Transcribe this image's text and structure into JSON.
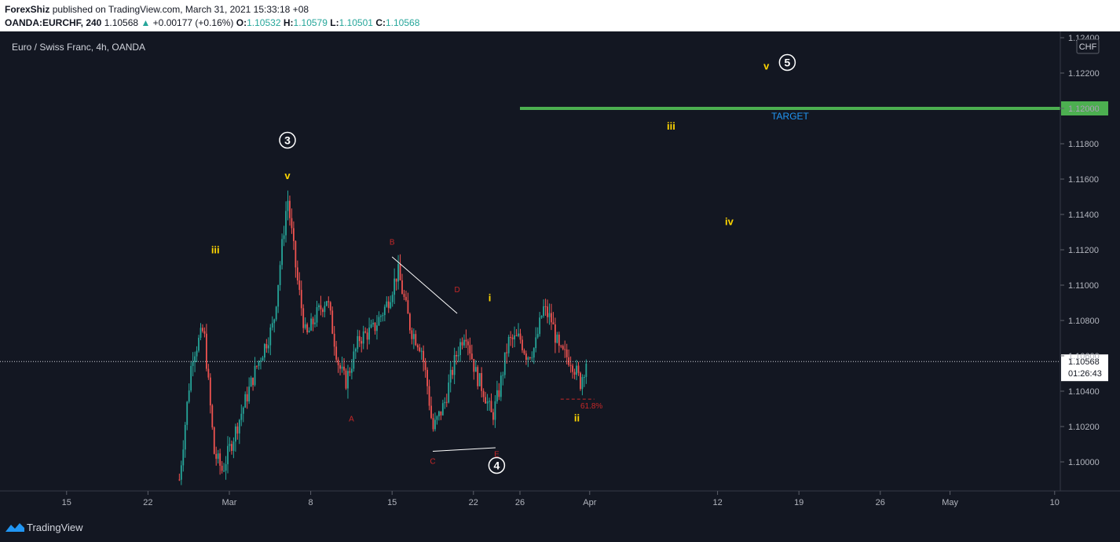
{
  "header": {
    "author": "ForexShiz",
    "published_text": "published on TradingView.com, March 31, 2021 15:33:18 +08",
    "symbol": "OANDA:EURCHF, 240",
    "last": "1.10568",
    "change": "+0.00177 (+0.16%)",
    "o_label": "O:",
    "o": "1.10532",
    "h_label": "H:",
    "h": "1.10579",
    "l_label": "L:",
    "l": "1.10501",
    "c_label": "C:",
    "c": "1.10568"
  },
  "footer": {
    "brand": "TradingView"
  },
  "colors": {
    "bg": "#131722",
    "up": "#26a69a",
    "down": "#ef5350",
    "target": "#4caf50",
    "yellow": "#ffd600",
    "red_label": "#c62828",
    "blue": "#2196f3"
  },
  "chart_data": {
    "type": "candlestick",
    "title": "Euro / Swiss Franc, 4h, OANDA",
    "currency": "CHF",
    "ylim": [
      1.098,
      1.1245
    ],
    "yticks": [
      "1.12400",
      "1.12200",
      "1.12000",
      "1.11800",
      "1.11600",
      "1.11400",
      "1.11200",
      "1.11000",
      "1.10800",
      "1.10600",
      "1.10400",
      "1.10200",
      "1.10000"
    ],
    "xticks": [
      {
        "label": "15",
        "day": -14
      },
      {
        "label": "22",
        "day": -7
      },
      {
        "label": "Mar",
        "day": 0
      },
      {
        "label": "8",
        "day": 7
      },
      {
        "label": "15",
        "day": 14
      },
      {
        "label": "22",
        "day": 21
      },
      {
        "label": "26",
        "day": 25
      },
      {
        "label": "Apr",
        "day": 31
      },
      {
        "label": "12",
        "day": 42
      },
      {
        "label": "19",
        "day": 49
      },
      {
        "label": "26",
        "day": 56
      },
      {
        "label": "May",
        "day": 62
      },
      {
        "label": "10",
        "day": 71
      }
    ],
    "price_anchors": [
      [
        -4.3,
        1.099
      ],
      [
        -3.2,
        1.106
      ],
      [
        -2.2,
        1.1075
      ],
      [
        -1.3,
        1.1005
      ],
      [
        -0.6,
        1.0995
      ],
      [
        0.4,
        1.1015
      ],
      [
        2.4,
        1.1055
      ],
      [
        3.8,
        1.1078
      ],
      [
        5.0,
        1.115
      ],
      [
        5.8,
        1.1105
      ],
      [
        6.6,
        1.107
      ],
      [
        7.4,
        1.1082
      ],
      [
        8.4,
        1.1093
      ],
      [
        9.4,
        1.1055
      ],
      [
        10.0,
        1.1045
      ],
      [
        11.2,
        1.107
      ],
      [
        12.4,
        1.1075
      ],
      [
        13.6,
        1.109
      ],
      [
        14.5,
        1.1108
      ],
      [
        15.6,
        1.1075
      ],
      [
        16.5,
        1.1065
      ],
      [
        17.0,
        1.1045
      ],
      [
        17.5,
        1.1018
      ],
      [
        18.5,
        1.1033
      ],
      [
        19.5,
        1.106
      ],
      [
        20.3,
        1.1075
      ],
      [
        21.2,
        1.105
      ],
      [
        21.9,
        1.104
      ],
      [
        22.6,
        1.1025
      ],
      [
        23.2,
        1.104
      ],
      [
        24.0,
        1.1068
      ],
      [
        25.0,
        1.107
      ],
      [
        25.6,
        1.106
      ],
      [
        26.3,
        1.1065
      ],
      [
        27.0,
        1.1087
      ],
      [
        27.7,
        1.108
      ],
      [
        28.4,
        1.1062
      ],
      [
        29.4,
        1.1058
      ],
      [
        30.2,
        1.1045
      ],
      [
        30.7,
        1.1057
      ]
    ],
    "last_price": "1.10568",
    "countdown": "01:26:43",
    "target": {
      "price": 1.12,
      "label": "TARGET",
      "price_label": "1.12000",
      "start_day": 25.0
    },
    "fib": {
      "label": "61.8%",
      "price": 1.10355
    },
    "waves_circled": [
      {
        "label": "3",
        "day": 5.0,
        "price": 1.1182
      },
      {
        "label": "4",
        "day": 23.0,
        "price": 1.0998
      },
      {
        "label": "5",
        "day": 48.0,
        "price": 1.1226
      }
    ],
    "waves_yellow": [
      {
        "label": "iii",
        "day": -1.2,
        "price": 1.1118
      },
      {
        "label": "v",
        "day": 5.0,
        "price": 1.116
      },
      {
        "label": "i",
        "day": 22.4,
        "price": 1.1091
      },
      {
        "label": "ii",
        "day": 29.9,
        "price": 1.1023
      },
      {
        "label": "iii",
        "day": 38.0,
        "price": 1.1188
      },
      {
        "label": "iv",
        "day": 43.0,
        "price": 1.1134
      },
      {
        "label": "v",
        "day": 46.2,
        "price": 1.1222
      }
    ],
    "waves_red": [
      {
        "label": "A",
        "day": 10.5,
        "price": 1.1023
      },
      {
        "label": "B",
        "day": 14.0,
        "price": 1.1123
      },
      {
        "label": "C",
        "day": 17.5,
        "price": 1.0999
      },
      {
        "label": "D",
        "day": 19.6,
        "price": 1.1096
      },
      {
        "label": "E",
        "day": 23.0,
        "price": 1.1003
      }
    ],
    "triangle_lines": [
      {
        "p1": {
          "day": 14.0,
          "price": 1.1116
        },
        "p2": {
          "day": 19.6,
          "price": 1.1084
        }
      },
      {
        "p1": {
          "day": 17.5,
          "price": 1.1006
        },
        "p2": {
          "day": 22.9,
          "price": 1.1008
        }
      }
    ]
  }
}
